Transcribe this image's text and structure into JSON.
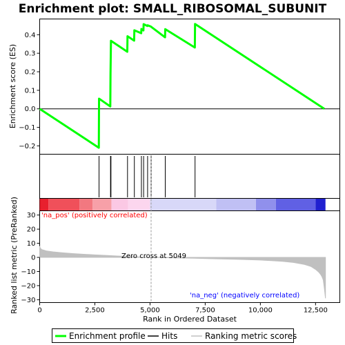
{
  "chart_data": {
    "type": "line",
    "title": "Enrichment plot: SMALL_RIBOSOMAL_SUBUNIT",
    "xlabel": "Rank in Ordered Dataset",
    "xlim": [
      0,
      13600
    ],
    "x_ticks": [
      0,
      2500,
      5000,
      7500,
      10000,
      12500
    ],
    "x_tick_labels": [
      "0",
      "2,500",
      "5,000",
      "7,500",
      "10,000",
      "12,500"
    ],
    "es_panel": {
      "ylabel": "Enrichment score (ES)",
      "ylim": [
        -0.245,
        0.485
      ],
      "y_ticks": [
        -0.2,
        -0.1,
        0.0,
        0.1,
        0.2,
        0.3,
        0.4
      ],
      "y_tick_labels": [
        "−0.2",
        "−0.1",
        "0.0",
        "0.1",
        "0.2",
        "0.3",
        "0.4"
      ],
      "grid": false,
      "series": [
        {
          "name": "Enrichment profile",
          "color": "#00ff00",
          "x": [
            0,
            2680,
            2690,
            3200,
            3210,
            3230,
            3970,
            3980,
            4280,
            4290,
            4600,
            4610,
            4700,
            4710,
            4880,
            4890,
            5040,
            5050,
            5680,
            5690,
            7030,
            7040,
            12900
          ],
          "y": [
            0.0,
            -0.21,
            0.055,
            0.013,
            0.19,
            0.367,
            0.308,
            0.392,
            0.368,
            0.424,
            0.408,
            0.431,
            0.423,
            0.457,
            0.447,
            0.451,
            0.444,
            0.443,
            0.386,
            0.43,
            0.331,
            0.458,
            0.0
          ]
        }
      ]
    },
    "hits": {
      "name": "Hits",
      "x": [
        2690,
        3210,
        3230,
        3980,
        4290,
        4610,
        4710,
        4890,
        5050,
        5690,
        7040
      ]
    },
    "color_bar": {
      "segments": [
        {
          "from": 0,
          "to": 400,
          "color": "#e8202e"
        },
        {
          "from": 400,
          "to": 1800,
          "color": "#f0505a"
        },
        {
          "from": 1800,
          "to": 2400,
          "color": "#f27880"
        },
        {
          "from": 2400,
          "to": 3250,
          "color": "#f7a0a8"
        },
        {
          "from": 3250,
          "to": 4000,
          "color": "#fbc8e4"
        },
        {
          "from": 4000,
          "to": 5000,
          "color": "#fcd6ee"
        },
        {
          "from": 5000,
          "to": 8000,
          "color": "#d8d8f8"
        },
        {
          "from": 8000,
          "to": 9800,
          "color": "#c0c0f4"
        },
        {
          "from": 9800,
          "to": 10700,
          "color": "#9090ec"
        },
        {
          "from": 10700,
          "to": 12500,
          "color": "#6060e4"
        },
        {
          "from": 12500,
          "to": 12950,
          "color": "#2020d0"
        }
      ]
    },
    "metric_panel": {
      "ylabel": "Ranked list metric (PreRanked)",
      "ylim": [
        -32,
        33
      ],
      "y_ticks": [
        -30,
        -20,
        -10,
        0,
        10,
        20,
        30
      ],
      "y_tick_labels": [
        "−30",
        "−20",
        "−10",
        "0",
        "10",
        "20",
        "30"
      ],
      "series": [
        {
          "name": "Ranking metric scores",
          "color": "#c0c0c0",
          "x": [
            0,
            30,
            100,
            300,
            600,
            1000,
            1500,
            2000,
            2500,
            3000,
            3500,
            4000,
            4500,
            5049,
            6000,
            7000,
            8000,
            9000,
            10000,
            10500,
            11000,
            11500,
            12000,
            12300,
            12500,
            12650,
            12750,
            12800,
            12850,
            12900,
            12950
          ],
          "y": [
            8,
            6.5,
            5.5,
            4.6,
            3.9,
            3.3,
            2.7,
            2.2,
            1.8,
            1.4,
            1.0,
            0.6,
            0.3,
            0,
            -0.3,
            -0.6,
            -1.0,
            -1.4,
            -1.9,
            -2.3,
            -2.8,
            -3.6,
            -5.0,
            -6.5,
            -8.5,
            -10.5,
            -12.5,
            -14,
            -16,
            -22,
            -29
          ]
        }
      ]
    },
    "annotations": {
      "pos_label": "'na_pos' (positively correlated)",
      "neg_label": "'na_neg' (negatively correlated)",
      "zero_cross": "Zero cross at 5049",
      "zero_cross_x": 5049,
      "pos_color": "#ff0000",
      "neg_color": "#0000ff"
    },
    "legend": {
      "placement": "bottom",
      "entries": [
        {
          "label": "Enrichment profile",
          "color": "#00ff00",
          "style": "thick"
        },
        {
          "label": "Hits",
          "color": "#000000",
          "style": "thin"
        },
        {
          "label": "Ranking metric scores",
          "color": "#c0c0c0",
          "style": "thin"
        }
      ]
    }
  }
}
